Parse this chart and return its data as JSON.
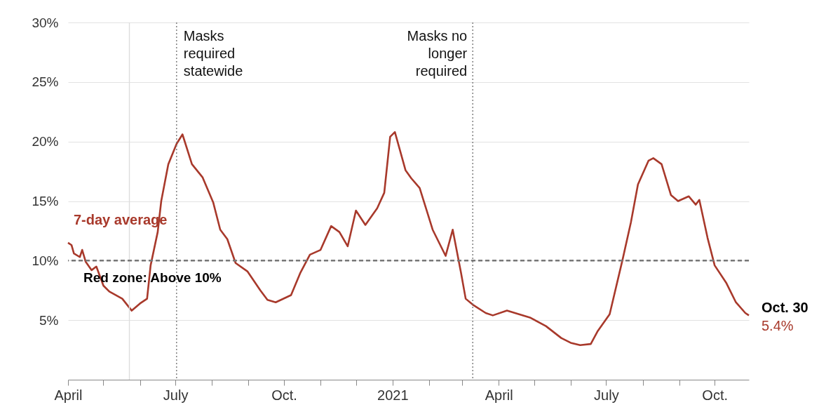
{
  "chart_data": {
    "type": "line",
    "x": [
      "2020-04-01",
      "2020-04-04",
      "2020-04-06",
      "2020-04-11",
      "2020-04-13",
      "2020-04-16",
      "2020-04-21",
      "2020-04-25",
      "2020-05-01",
      "2020-05-06",
      "2020-05-17",
      "2020-05-25",
      "2020-06-01",
      "2020-06-07",
      "2020-06-10",
      "2020-06-16",
      "2020-06-19",
      "2020-06-25",
      "2020-07-02",
      "2020-07-07",
      "2020-07-15",
      "2020-07-24",
      "2020-08-02",
      "2020-08-08",
      "2020-08-14",
      "2020-08-21",
      "2020-08-31",
      "2020-09-11",
      "2020-09-17",
      "2020-09-24",
      "2020-10-07",
      "2020-10-15",
      "2020-10-23",
      "2020-11-01",
      "2020-11-10",
      "2020-11-17",
      "2020-11-24",
      "2020-12-01",
      "2020-12-09",
      "2020-12-19",
      "2020-12-25",
      "2020-12-30",
      "2021-01-03",
      "2021-01-12",
      "2021-01-17",
      "2021-01-24",
      "2021-01-30",
      "2021-02-04",
      "2021-02-15",
      "2021-02-21",
      "2021-02-28",
      "2021-03-04",
      "2021-03-10",
      "2021-03-21",
      "2021-03-27",
      "2021-04-08",
      "2021-04-28",
      "2021-05-11",
      "2021-05-24",
      "2021-06-01",
      "2021-06-09",
      "2021-06-18",
      "2021-06-24",
      "2021-07-04",
      "2021-07-15",
      "2021-07-22",
      "2021-07-28",
      "2021-08-06",
      "2021-08-10",
      "2021-08-17",
      "2021-08-25",
      "2021-08-31",
      "2021-09-09",
      "2021-09-15",
      "2021-09-18",
      "2021-09-25",
      "2021-10-01",
      "2021-10-11",
      "2021-10-19",
      "2021-10-27",
      "2021-10-30"
    ],
    "series": [
      {
        "name": "7-day average",
        "color": "#a8392b",
        "values": [
          11.5,
          11.3,
          10.6,
          10.3,
          10.9,
          9.9,
          9.2,
          9.5,
          7.9,
          7.4,
          6.8,
          5.8,
          6.4,
          6.8,
          9.6,
          12.4,
          15.0,
          18.1,
          19.8,
          20.6,
          18.1,
          17.0,
          14.9,
          12.6,
          11.8,
          9.8,
          9.1,
          7.5,
          6.7,
          6.5,
          7.1,
          9.0,
          10.5,
          10.9,
          12.9,
          12.4,
          11.2,
          14.2,
          13.0,
          14.4,
          15.7,
          20.4,
          20.8,
          17.6,
          16.9,
          16.1,
          14.2,
          12.6,
          10.4,
          12.6,
          9.0,
          6.8,
          6.3,
          5.6,
          5.4,
          5.8,
          5.2,
          4.5,
          3.5,
          3.1,
          2.9,
          3.0,
          4.1,
          5.5,
          10.1,
          13.2,
          16.4,
          18.4,
          18.6,
          18.1,
          15.5,
          15.0,
          15.4,
          14.7,
          15.1,
          11.9,
          9.6,
          8.1,
          6.5,
          5.6,
          5.4
        ],
        "value_labels": [
          null,
          null,
          null,
          null,
          null,
          null,
          null,
          null,
          null,
          null,
          null,
          null,
          null,
          null,
          null,
          null,
          null,
          null,
          null,
          null,
          null,
          null,
          null,
          null,
          null,
          null,
          null,
          null,
          null,
          null,
          null,
          null,
          null,
          null,
          null,
          null,
          null,
          null,
          null,
          null,
          null,
          null,
          null,
          null,
          null,
          null,
          null,
          null,
          null,
          null,
          null,
          null,
          null,
          null,
          null,
          null,
          null,
          null,
          null,
          null,
          null,
          null,
          null,
          null,
          null,
          null,
          null,
          null,
          null,
          null,
          null,
          null,
          null,
          null,
          null,
          null,
          null,
          null,
          null,
          null,
          "5.4%"
        ]
      }
    ],
    "xlim": [
      "2020-04-01",
      "2021-10-30"
    ],
    "xticks": [
      {
        "value": "2020-04-01",
        "label": "April"
      },
      {
        "value": "2020-05-01",
        "label": null
      },
      {
        "value": "2020-06-01",
        "label": null
      },
      {
        "value": "2020-07-01",
        "label": "July"
      },
      {
        "value": "2020-08-01",
        "label": null
      },
      {
        "value": "2020-09-01",
        "label": null
      },
      {
        "value": "2020-10-01",
        "label": "Oct."
      },
      {
        "value": "2020-11-01",
        "label": null
      },
      {
        "value": "2020-12-01",
        "label": null
      },
      {
        "value": "2021-01-01",
        "label": "2021"
      },
      {
        "value": "2021-02-01",
        "label": null
      },
      {
        "value": "2021-03-01",
        "label": null
      },
      {
        "value": "2021-04-01",
        "label": "April"
      },
      {
        "value": "2021-05-01",
        "label": null
      },
      {
        "value": "2021-06-01",
        "label": null
      },
      {
        "value": "2021-07-01",
        "label": "July"
      },
      {
        "value": "2021-08-01",
        "label": null
      },
      {
        "value": "2021-09-01",
        "label": null
      },
      {
        "value": "2021-10-01",
        "label": "Oct."
      }
    ],
    "ylim": [
      0,
      30
    ],
    "yticks": [
      {
        "value": 5,
        "label": "5%"
      },
      {
        "value": 10,
        "label": "10%"
      },
      {
        "value": 15,
        "label": "15%"
      },
      {
        "value": 20,
        "label": "20%"
      },
      {
        "value": 25,
        "label": "25%"
      },
      {
        "value": 30,
        "label": "30%"
      }
    ],
    "grid": "y",
    "ref_lines": [
      {
        "axis": "x",
        "value": "2020-05-23",
        "color": "#dddddd",
        "line_style": "solid"
      },
      {
        "axis": "x",
        "value": "2020-07-02",
        "label": "Masks required statewide",
        "color": "#777777",
        "line_style": "dotted"
      },
      {
        "axis": "x",
        "value": "2021-03-10",
        "label": "Masks no longer required",
        "color": "#777777",
        "line_style": "dotted"
      },
      {
        "axis": "y",
        "value": 10,
        "label": "Red zone: Above 10%",
        "color": "#777777",
        "line_style": "dashed"
      }
    ],
    "annotations": [
      {
        "text": "Oct. 30",
        "x": "2021-10-30",
        "y": 5.4
      }
    ]
  }
}
